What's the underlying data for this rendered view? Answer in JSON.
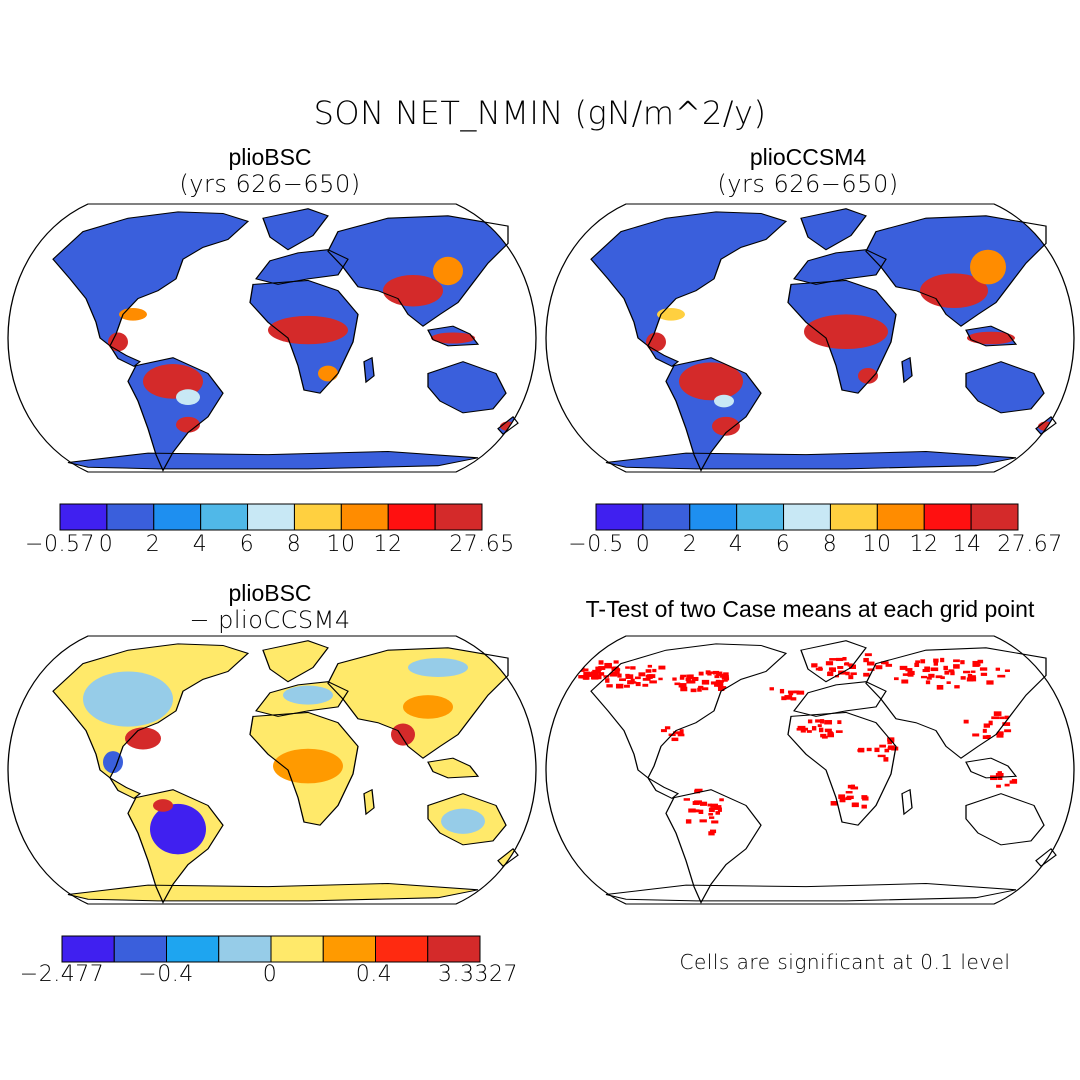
{
  "title": "SON NET_NMIN (gN/m^2/y)",
  "panels": {
    "a": {
      "case": "plioBSC",
      "subtitle": "(yrs 626−650)",
      "colorbar": {
        "colors": [
          "#4020f0",
          "#3a5fdc",
          "#1e8ff0",
          "#50b8e8",
          "#c8e8f5",
          "#ffd040",
          "#ff8c00",
          "#ff1010",
          "#d42a2a"
        ],
        "labels": [
          "−0.57",
          "0",
          "2",
          "4",
          "6",
          "8",
          "10",
          "12",
          "27.65"
        ]
      }
    },
    "b": {
      "case": "plioCCSM4",
      "subtitle": "(yrs 626−650)",
      "colorbar": {
        "colors": [
          "#4020f0",
          "#3a5fdc",
          "#1e8ff0",
          "#50b8e8",
          "#c8e8f5",
          "#ffd040",
          "#ff8c00",
          "#ff1010",
          "#d42a2a"
        ],
        "labels": [
          "−0.5",
          "0",
          "2",
          "4",
          "6",
          "8",
          "10",
          "12",
          "14",
          "27.67"
        ]
      }
    },
    "c": {
      "case": "plioBSC",
      "subtitle": "− plioCCSM4",
      "colorbar": {
        "colors": [
          "#4020f0",
          "#3a5fdc",
          "#1ea5f0",
          "#96cce8",
          "#ffe96a",
          "#ff9a00",
          "#ff2a10",
          "#d42a2a"
        ],
        "labels": [
          "−2.477",
          "−0.4",
          "0",
          "0.4",
          "3.3327"
        ]
      }
    },
    "d": {
      "title": "T-Test of two Case means at each grid point",
      "note": "Cells are significant at 0.1 level",
      "marker_color": "#ff0000"
    }
  },
  "colors": {
    "land_blue": "#3a5fdc",
    "hot": "#d42a2a",
    "diff_yellow": "#ffe96a",
    "diff_blue": "#96cce8"
  }
}
